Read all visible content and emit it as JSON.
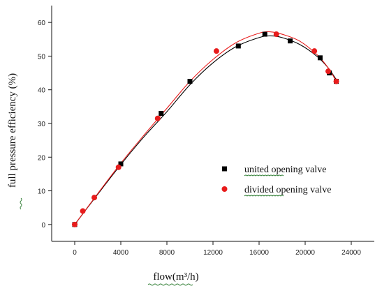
{
  "chart_data": {
    "type": "scatter",
    "xlabel": "flow(m³/h)",
    "ylabel": "full pressure efficiency (%)",
    "xlim": [
      -2000,
      26000
    ],
    "ylim": [
      -5,
      65
    ],
    "x_ticks": [
      "0",
      "4000",
      "8000",
      "12000",
      "16000",
      "20000",
      "24000"
    ],
    "y_ticks": [
      "0",
      "10",
      "20",
      "30",
      "40",
      "50",
      "60"
    ],
    "grid": false,
    "legend_position": "center-right",
    "series": [
      {
        "name": "united opening valve",
        "color": "#000000",
        "marker": "square",
        "points": [
          {
            "x": 0,
            "y": 0
          },
          {
            "x": 4000,
            "y": 18
          },
          {
            "x": 7500,
            "y": 33
          },
          {
            "x": 10000,
            "y": 42.5
          },
          {
            "x": 14200,
            "y": 53
          },
          {
            "x": 16500,
            "y": 56.5
          },
          {
            "x": 18700,
            "y": 54.5
          },
          {
            "x": 21300,
            "y": 49.5
          },
          {
            "x": 22100,
            "y": 45
          },
          {
            "x": 22700,
            "y": 42.5
          }
        ],
        "curve": [
          {
            "x": 0,
            "y": 0
          },
          {
            "x": 2000,
            "y": 9
          },
          {
            "x": 4000,
            "y": 17.8
          },
          {
            "x": 6000,
            "y": 26
          },
          {
            "x": 8000,
            "y": 33.5
          },
          {
            "x": 10000,
            "y": 41.5
          },
          {
            "x": 12000,
            "y": 48
          },
          {
            "x": 14000,
            "y": 52.8
          },
          {
            "x": 16000,
            "y": 55.5
          },
          {
            "x": 17000,
            "y": 56
          },
          {
            "x": 18000,
            "y": 55.5
          },
          {
            "x": 19500,
            "y": 53.5
          },
          {
            "x": 21000,
            "y": 50
          },
          {
            "x": 22000,
            "y": 46.5
          },
          {
            "x": 22700,
            "y": 43
          }
        ]
      },
      {
        "name": "divided opening valve",
        "color": "#e81c1c",
        "marker": "circle",
        "points": [
          {
            "x": 0,
            "y": 0
          },
          {
            "x": 700,
            "y": 4
          },
          {
            "x": 1700,
            "y": 8
          },
          {
            "x": 3800,
            "y": 17
          },
          {
            "x": 7200,
            "y": 31.5
          },
          {
            "x": 12300,
            "y": 51.5
          },
          {
            "x": 17500,
            "y": 56.5
          },
          {
            "x": 20800,
            "y": 51.5
          },
          {
            "x": 22000,
            "y": 45.5
          },
          {
            "x": 22700,
            "y": 42.5
          }
        ],
        "curve": [
          {
            "x": 0,
            "y": 0
          },
          {
            "x": 2000,
            "y": 9.2
          },
          {
            "x": 4000,
            "y": 18.2
          },
          {
            "x": 6000,
            "y": 26.5
          },
          {
            "x": 8000,
            "y": 34.5
          },
          {
            "x": 10000,
            "y": 42.5
          },
          {
            "x": 12000,
            "y": 49
          },
          {
            "x": 14000,
            "y": 54
          },
          {
            "x": 16000,
            "y": 56.8
          },
          {
            "x": 17000,
            "y": 57.2
          },
          {
            "x": 18000,
            "y": 56.5
          },
          {
            "x": 19500,
            "y": 54.5
          },
          {
            "x": 21000,
            "y": 50.5
          },
          {
            "x": 22000,
            "y": 46.5
          },
          {
            "x": 22700,
            "y": 42.5
          }
        ]
      }
    ]
  }
}
